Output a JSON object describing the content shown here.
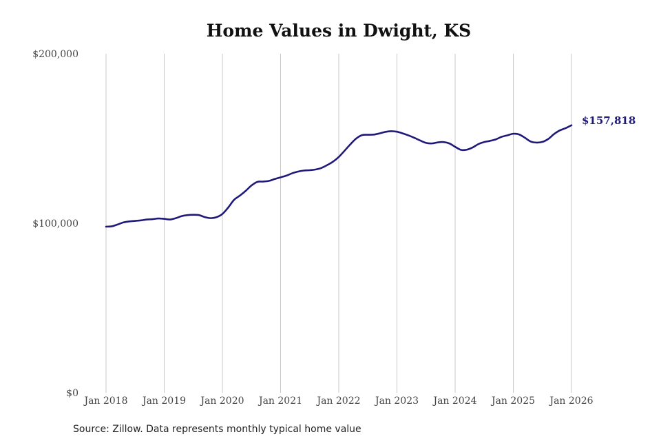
{
  "chart_data": {
    "type": "line",
    "title": "Home Values in Dwight, KS",
    "xlabel": "",
    "ylabel": "",
    "ylim": [
      0,
      200000
    ],
    "xlim": [
      2018,
      2026
    ],
    "grid": {
      "vertical": true,
      "horizontal": false
    },
    "y_ticks": [
      {
        "value": 0,
        "label": "$0"
      },
      {
        "value": 100000,
        "label": "$100,000"
      },
      {
        "value": 200000,
        "label": "$200,000"
      }
    ],
    "x_ticks": [
      {
        "value": 2018,
        "label": "Jan 2018"
      },
      {
        "value": 2019,
        "label": "Jan 2019"
      },
      {
        "value": 2020,
        "label": "Jan 2020"
      },
      {
        "value": 2021,
        "label": "Jan 2021"
      },
      {
        "value": 2022,
        "label": "Jan 2022"
      },
      {
        "value": 2023,
        "label": "Jan 2023"
      },
      {
        "value": 2024,
        "label": "Jan 2024"
      },
      {
        "value": 2025,
        "label": "Jan 2025"
      },
      {
        "value": 2026,
        "label": "Jan 2026"
      }
    ],
    "series": [
      {
        "color": "#1f1a7a",
        "points": [
          [
            2018.0,
            98000
          ],
          [
            2018.1,
            98200
          ],
          [
            2018.2,
            99300
          ],
          [
            2018.3,
            100500
          ],
          [
            2018.4,
            101100
          ],
          [
            2018.5,
            101400
          ],
          [
            2018.6,
            101700
          ],
          [
            2018.7,
            102200
          ],
          [
            2018.8,
            102400
          ],
          [
            2018.9,
            102800
          ],
          [
            2019.0,
            102600
          ],
          [
            2019.1,
            102200
          ],
          [
            2019.2,
            103000
          ],
          [
            2019.3,
            104200
          ],
          [
            2019.4,
            104800
          ],
          [
            2019.5,
            105000
          ],
          [
            2019.6,
            104800
          ],
          [
            2019.7,
            103600
          ],
          [
            2019.8,
            103000
          ],
          [
            2019.9,
            103600
          ],
          [
            2020.0,
            105500
          ],
          [
            2020.1,
            109300
          ],
          [
            2020.2,
            113800
          ],
          [
            2020.3,
            116300
          ],
          [
            2020.4,
            119100
          ],
          [
            2020.5,
            122300
          ],
          [
            2020.6,
            124400
          ],
          [
            2020.7,
            124600
          ],
          [
            2020.8,
            125000
          ],
          [
            2020.9,
            126100
          ],
          [
            2021.0,
            127100
          ],
          [
            2021.1,
            128100
          ],
          [
            2021.2,
            129500
          ],
          [
            2021.3,
            130500
          ],
          [
            2021.4,
            131100
          ],
          [
            2021.5,
            131300
          ],
          [
            2021.6,
            131700
          ],
          [
            2021.7,
            132600
          ],
          [
            2021.8,
            134300
          ],
          [
            2021.9,
            136300
          ],
          [
            2022.0,
            139100
          ],
          [
            2022.1,
            142800
          ],
          [
            2022.2,
            146600
          ],
          [
            2022.3,
            150000
          ],
          [
            2022.4,
            152000
          ],
          [
            2022.5,
            152200
          ],
          [
            2022.6,
            152300
          ],
          [
            2022.7,
            153000
          ],
          [
            2022.8,
            153900
          ],
          [
            2022.9,
            154300
          ],
          [
            2023.0,
            154000
          ],
          [
            2023.1,
            153000
          ],
          [
            2023.2,
            151800
          ],
          [
            2023.3,
            150400
          ],
          [
            2023.4,
            148800
          ],
          [
            2023.5,
            147400
          ],
          [
            2023.6,
            147100
          ],
          [
            2023.7,
            147700
          ],
          [
            2023.8,
            147900
          ],
          [
            2023.9,
            147100
          ],
          [
            2024.0,
            145100
          ],
          [
            2024.1,
            143300
          ],
          [
            2024.2,
            143400
          ],
          [
            2024.3,
            144700
          ],
          [
            2024.4,
            146700
          ],
          [
            2024.5,
            147900
          ],
          [
            2024.6,
            148600
          ],
          [
            2024.7,
            149500
          ],
          [
            2024.8,
            151000
          ],
          [
            2024.9,
            151900
          ],
          [
            2025.0,
            152800
          ],
          [
            2025.1,
            152400
          ],
          [
            2025.2,
            150400
          ],
          [
            2025.3,
            148200
          ],
          [
            2025.4,
            147600
          ],
          [
            2025.5,
            148000
          ],
          [
            2025.6,
            149700
          ],
          [
            2025.7,
            152600
          ],
          [
            2025.8,
            154800
          ],
          [
            2025.9,
            156100
          ],
          [
            2026.0,
            157818
          ]
        ]
      }
    ],
    "end_label": {
      "text": "$157,818",
      "x": 2026.0,
      "y": 157818
    },
    "source": "Source: Zillow. Data represents monthly typical home value"
  }
}
